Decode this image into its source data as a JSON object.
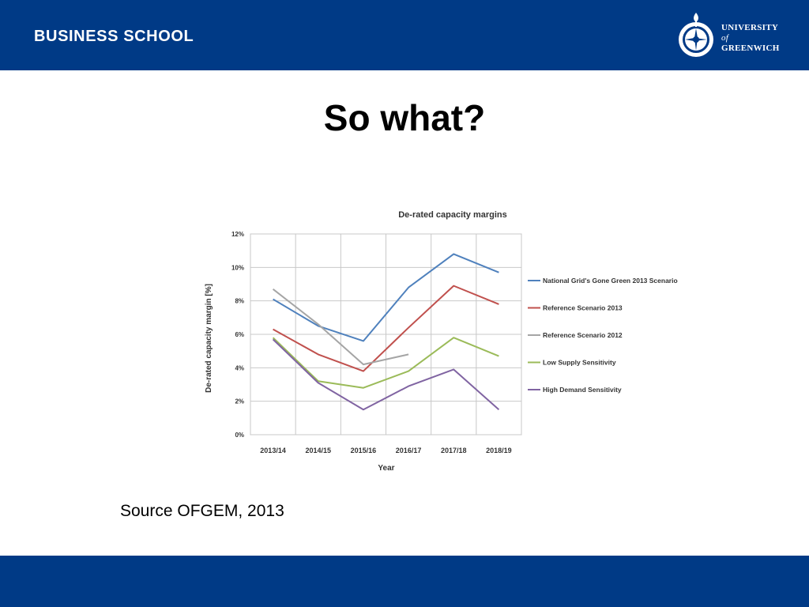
{
  "header": {
    "left_title": "BUSINESS SCHOOL",
    "logo": {
      "line1": "UNIVERSITY",
      "line2": "of",
      "line3": "GREENWICH",
      "icon": "university-crest-icon"
    }
  },
  "slide": {
    "title": "So what?",
    "source": "Source OFGEM, 2013"
  },
  "colors": {
    "banner": "#003a86",
    "text": "#000000"
  },
  "chart_data": {
    "type": "line",
    "title": "De-rated capacity margins",
    "xlabel": "Year",
    "ylabel": "De-rated capacity margin [%]",
    "categories": [
      "2013/14",
      "2014/15",
      "2015/16",
      "2016/17",
      "2017/18",
      "2018/19"
    ],
    "ylim": [
      0,
      12
    ],
    "yticks": [
      "0%",
      "2%",
      "4%",
      "6%",
      "8%",
      "10%",
      "12%"
    ],
    "grid": true,
    "legend_position": "right",
    "series": [
      {
        "name": "National Grid's Gone Green 2013 Scenario",
        "color": "#4f81bd",
        "values": [
          8.1,
          6.5,
          5.6,
          8.8,
          10.8,
          9.7
        ]
      },
      {
        "name": "Reference Scenario 2013",
        "color": "#c0504d",
        "values": [
          6.3,
          4.8,
          3.8,
          6.4,
          8.9,
          7.8
        ]
      },
      {
        "name": "Reference Scenario 2012",
        "color": "#a5a5a5",
        "values": [
          8.7,
          6.6,
          4.2,
          4.8,
          null,
          null
        ]
      },
      {
        "name": "Low Supply Sensitivity",
        "color": "#9bbb59",
        "values": [
          5.8,
          3.2,
          2.8,
          3.8,
          5.8,
          4.7
        ]
      },
      {
        "name": "High Demand Sensitivity",
        "color": "#8064a2",
        "values": [
          5.7,
          3.1,
          1.5,
          2.9,
          3.9,
          1.5
        ]
      }
    ]
  }
}
